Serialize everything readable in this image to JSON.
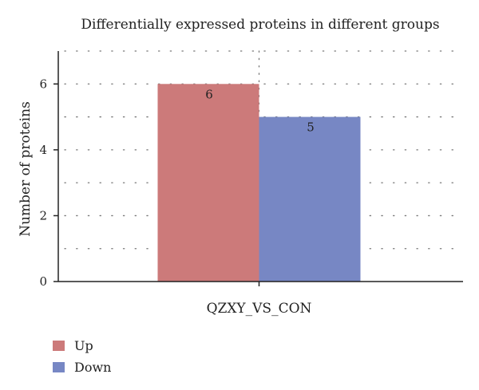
{
  "chart_data": {
    "type": "bar",
    "title": "Differentially expressed proteins in different groups",
    "xlabel": "",
    "ylabel": "Number of proteins",
    "categories": [
      "QZXY_VS_CON"
    ],
    "series": [
      {
        "name": "Up",
        "values": [
          6
        ],
        "color": "#cc7a7a"
      },
      {
        "name": "Down",
        "values": [
          5
        ],
        "color": "#7787c4"
      }
    ],
    "ylim": [
      0,
      7
    ],
    "yticks": [
      0,
      2,
      4,
      6
    ],
    "grid": true,
    "legend_position": "bottom-left"
  }
}
